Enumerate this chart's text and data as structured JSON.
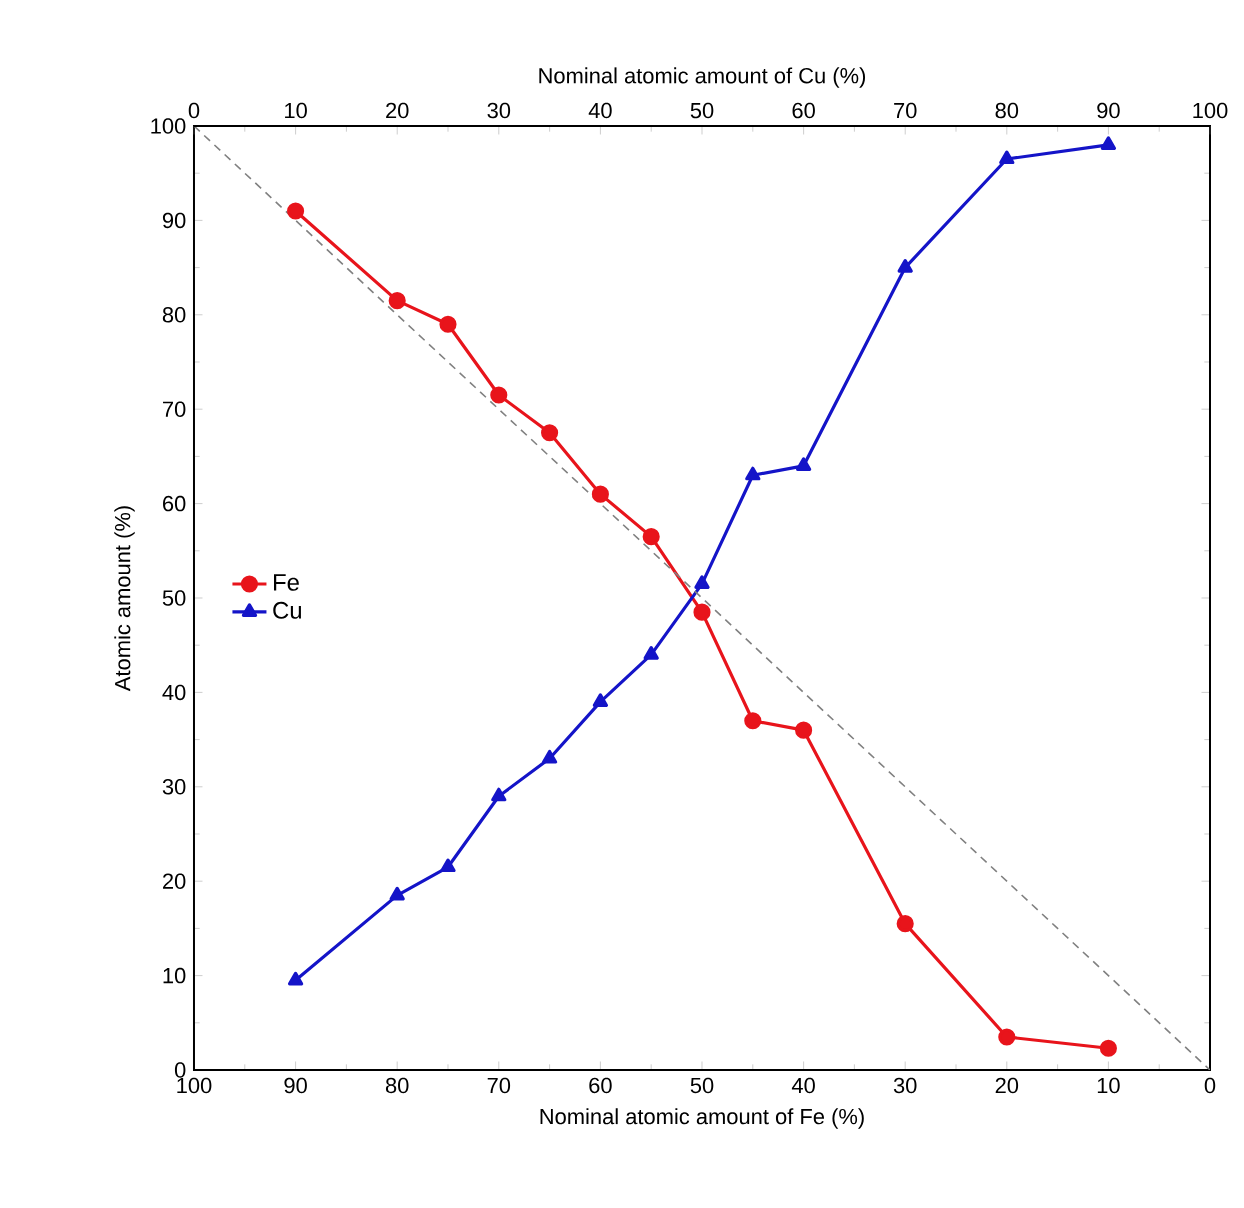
{
  "chart_data": {
    "type": "line",
    "xlabel": "Nominal atomic amount of Fe (%)",
    "x2label": "Nominal atomic amount of Cu (%)",
    "ylabel": "Atomic amount (%)",
    "x": [
      90,
      80,
      75,
      70,
      65,
      60,
      55,
      50,
      45,
      40,
      30,
      20,
      10
    ],
    "series": [
      {
        "name": "Fe",
        "color": "#e8141b",
        "marker": "circle",
        "values": [
          91,
          81.5,
          79,
          71.5,
          67.5,
          61,
          56.5,
          48.5,
          37,
          36,
          15.5,
          3.5,
          2.3
        ]
      },
      {
        "name": "Cu",
        "color": "#1414c8",
        "marker": "triangle",
        "values": [
          9.5,
          18.5,
          21.5,
          29,
          33,
          39,
          44,
          51.5,
          63,
          64,
          85,
          96.5,
          98
        ]
      },
      {
        "color": "#808080",
        "marker": "none",
        "line_style": "dashed",
        "x": [
          100,
          0
        ],
        "values": [
          100,
          0
        ]
      }
    ],
    "xlim": [
      100,
      0
    ],
    "xticks": [
      100,
      90,
      80,
      70,
      60,
      50,
      40,
      30,
      20,
      10,
      0
    ],
    "x2lim": [
      0,
      100
    ],
    "x2ticks": [
      0,
      10,
      20,
      30,
      40,
      50,
      60,
      70,
      80,
      90,
      100
    ],
    "ylim": [
      0,
      100
    ],
    "yticks": [
      0,
      10,
      20,
      30,
      40,
      50,
      60,
      70,
      80,
      90,
      100
    ],
    "legend": "left",
    "grid": false
  }
}
